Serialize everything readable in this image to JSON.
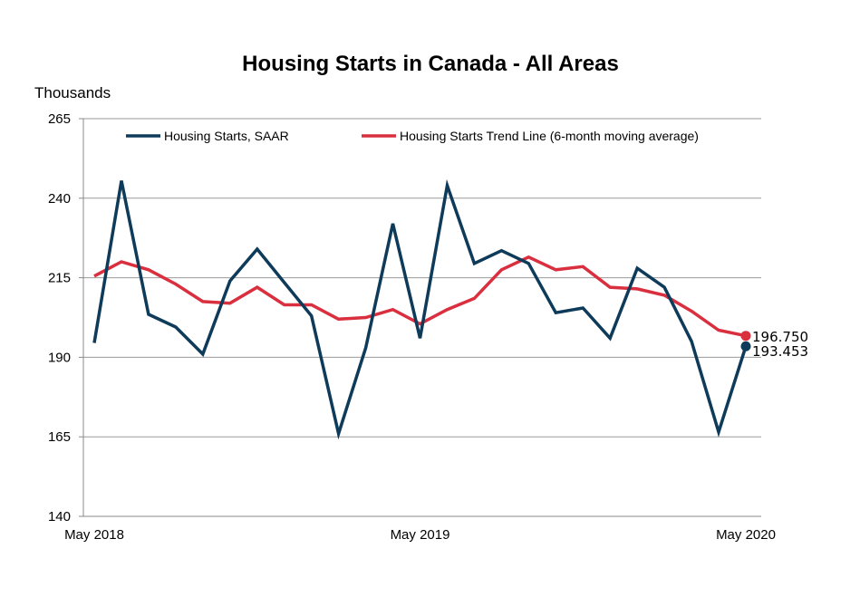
{
  "chart_data": {
    "type": "line",
    "title": "Housing Starts in Canada - All Areas",
    "ylabel": "Thousands",
    "xlabel": "",
    "ylim": [
      140,
      265
    ],
    "yticks": [
      140,
      165,
      190,
      215,
      240,
      265
    ],
    "grid": true,
    "legend_position": "top",
    "x": [
      "May 2018",
      "Jun 2018",
      "Jul 2018",
      "Aug 2018",
      "Sep 2018",
      "Oct 2018",
      "Nov 2018",
      "Dec 2018",
      "Jan 2019",
      "Feb 2019",
      "Mar 2019",
      "Apr 2019",
      "May 2019",
      "Jun 2019",
      "Jul 2019",
      "Aug 2019",
      "Sep 2019",
      "Oct 2019",
      "Nov 2019",
      "Dec 2019",
      "Jan 2020",
      "Feb 2020",
      "Mar 2020",
      "Apr 2020",
      "May 2020"
    ],
    "xtick_labels": [
      {
        "index": 0,
        "label": "May 2018"
      },
      {
        "index": 12,
        "label": "May 2019"
      },
      {
        "index": 24,
        "label": "May 2020"
      }
    ],
    "series": [
      {
        "name": "Housing Starts, SAAR",
        "color": "#0f3b5a",
        "values": [
          194.5,
          245.5,
          203.5,
          199.5,
          191,
          214,
          224,
          213.5,
          203,
          166,
          193,
          232,
          196,
          244,
          219.5,
          223.5,
          219.5,
          204,
          205.5,
          196,
          218,
          212,
          195,
          166.5,
          193.453
        ],
        "end_label": "193.453"
      },
      {
        "name": "Housing Starts Trend Line (6-month moving average)",
        "color": "#d92f3f",
        "values": [
          215.5,
          220,
          217.5,
          213,
          207.5,
          207,
          212,
          206.5,
          206.5,
          202,
          202.5,
          205,
          200.5,
          205,
          208.5,
          217.5,
          221.5,
          217.5,
          218.5,
          212,
          211.5,
          209.5,
          204.5,
          198.5,
          196.75
        ],
        "end_label": "196.750"
      }
    ]
  }
}
